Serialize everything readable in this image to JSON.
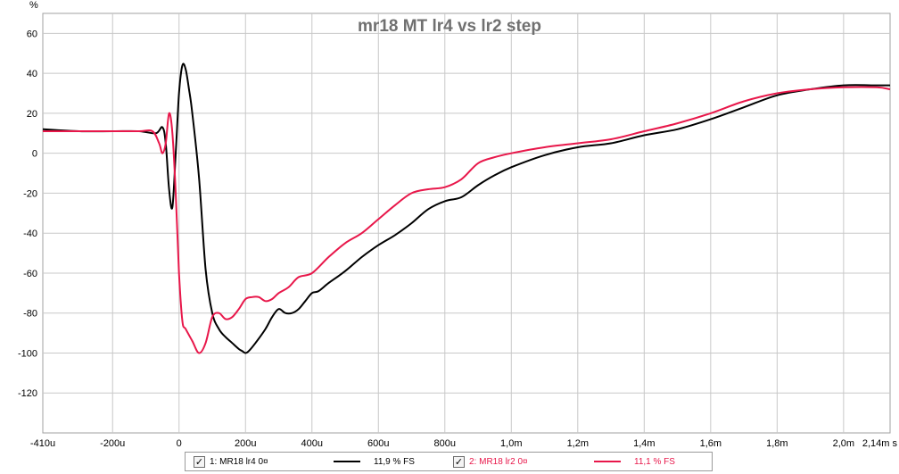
{
  "chart_data": {
    "type": "line",
    "title": "mr18 MT lr4 vs lr2 step",
    "ylabel_unit": "%",
    "xlabel_unit": "s",
    "xlim": [
      -0.00041,
      0.00214
    ],
    "ylim": [
      -140,
      70
    ],
    "grid": true,
    "x_ticks": [
      {
        "v": -0.00041,
        "label": "-410u"
      },
      {
        "v": -0.0002,
        "label": "-200u"
      },
      {
        "v": 0.0,
        "label": "0"
      },
      {
        "v": 0.0002,
        "label": "200u"
      },
      {
        "v": 0.0004,
        "label": "400u"
      },
      {
        "v": 0.0006,
        "label": "600u"
      },
      {
        "v": 0.0008,
        "label": "800u"
      },
      {
        "v": 0.001,
        "label": "1,0m"
      },
      {
        "v": 0.0012,
        "label": "1,2m"
      },
      {
        "v": 0.0014,
        "label": "1,4m"
      },
      {
        "v": 0.0016,
        "label": "1,6m"
      },
      {
        "v": 0.0018,
        "label": "1,8m"
      },
      {
        "v": 0.002,
        "label": "2,0m"
      }
    ],
    "x_end_label": "2,14m s",
    "y_ticks": [
      60,
      40,
      20,
      0,
      -20,
      -40,
      -60,
      -80,
      -100,
      -120
    ],
    "series": [
      {
        "name": "1: MR18 lr4 0¤",
        "color": "#000000",
        "legend_value": "11,9 % FS",
        "x": [
          -0.00041,
          -0.0003,
          -0.0002,
          -0.00012,
          -7e-05,
          -5e-05,
          -4e-05,
          -3e-05,
          -2e-05,
          -1e-05,
          0.0,
          1e-05,
          2e-05,
          3e-05,
          4e-05,
          6e-05,
          8e-05,
          0.0001,
          0.00012,
          0.00014,
          0.00016,
          0.00018,
          0.00019,
          0.0002,
          0.00021,
          0.00023,
          0.00026,
          0.00028,
          0.0003,
          0.00032,
          0.00034,
          0.00036,
          0.00038,
          0.0004,
          0.00042,
          0.00045,
          0.0005,
          0.00055,
          0.0006,
          0.00065,
          0.0007,
          0.00075,
          0.0008,
          0.00085,
          0.0009,
          0.00095,
          0.001,
          0.0011,
          0.0012,
          0.0013,
          0.0014,
          0.0015,
          0.0016,
          0.0017,
          0.0018,
          0.0019,
          0.002,
          0.0021,
          0.00214
        ],
        "y": [
          12,
          11,
          11,
          11,
          10,
          13,
          5,
          -18,
          -27,
          0,
          30,
          44,
          42,
          32,
          20,
          -12,
          -58,
          -80,
          -88,
          -92,
          -95,
          -98,
          -99,
          -100,
          -99,
          -95,
          -88,
          -82,
          -78,
          -80,
          -80,
          -78,
          -74,
          -70,
          -69,
          -65,
          -59,
          -52,
          -46,
          -41,
          -35,
          -28,
          -24,
          -22,
          -16,
          -11,
          -7,
          -1,
          3,
          5,
          9,
          12,
          17,
          23,
          29,
          32,
          34,
          34,
          34
        ]
      },
      {
        "name": "2: MR18 lr2 0¤",
        "color": "#e8174a",
        "legend_value": "11,1 % FS",
        "x": [
          -0.00041,
          -0.0003,
          -0.0002,
          -0.00012,
          -8e-05,
          -6e-05,
          -5e-05,
          -4e-05,
          -3e-05,
          -2e-05,
          -1e-05,
          0.0,
          1e-05,
          2e-05,
          4e-05,
          6e-05,
          8e-05,
          0.0001,
          0.00012,
          0.00014,
          0.00016,
          0.00018,
          0.0002,
          0.00022,
          0.00024,
          0.00026,
          0.00028,
          0.0003,
          0.00033,
          0.00036,
          0.0004,
          0.00045,
          0.0005,
          0.00055,
          0.0006,
          0.00065,
          0.0007,
          0.00075,
          0.0008,
          0.00085,
          0.0009,
          0.00095,
          0.001,
          0.0011,
          0.0012,
          0.0013,
          0.0014,
          0.0015,
          0.0016,
          0.0017,
          0.0018,
          0.0019,
          0.002,
          0.0021,
          0.00214
        ],
        "y": [
          11,
          11,
          11,
          11,
          11,
          5,
          0,
          5,
          20,
          10,
          -20,
          -60,
          -84,
          -88,
          -94,
          -100,
          -95,
          -82,
          -80,
          -83,
          -82,
          -78,
          -73,
          -72,
          -72,
          -74,
          -73,
          -70,
          -67,
          -62,
          -60,
          -52,
          -45,
          -40,
          -33,
          -26,
          -20,
          -18,
          -17,
          -13,
          -5,
          -2,
          0,
          3,
          5,
          7,
          11,
          15,
          20,
          26,
          30,
          32,
          33,
          33,
          32
        ]
      }
    ]
  },
  "legend": {
    "check_mark": "✓"
  }
}
